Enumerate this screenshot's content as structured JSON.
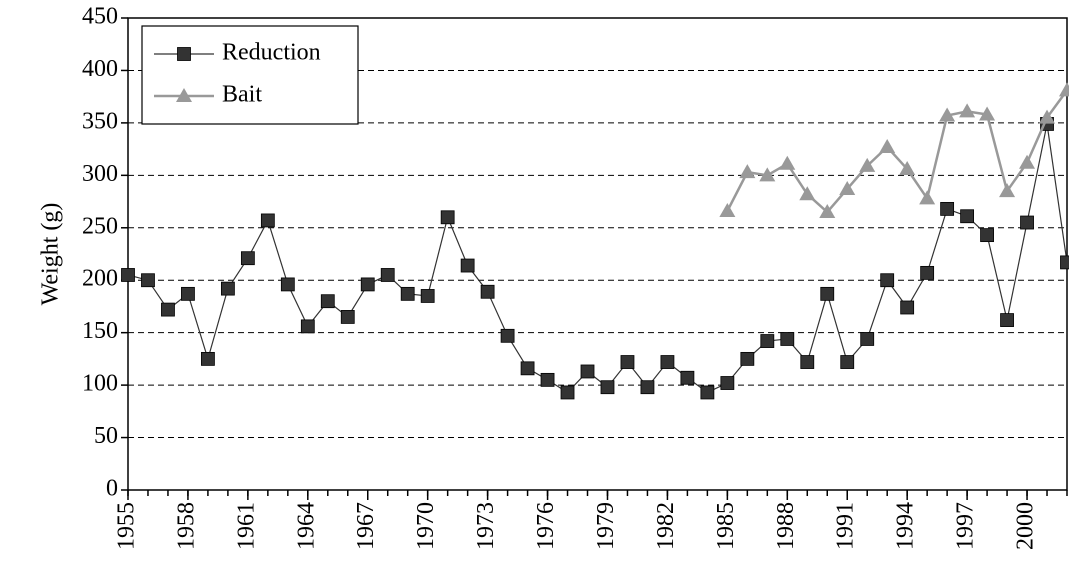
{
  "chart_data": {
    "type": "line",
    "y_label": "Weight (g)",
    "x": [
      1955,
      1956,
      1957,
      1958,
      1959,
      1960,
      1961,
      1962,
      1963,
      1964,
      1965,
      1966,
      1967,
      1968,
      1969,
      1970,
      1971,
      1972,
      1973,
      1974,
      1975,
      1976,
      1977,
      1978,
      1979,
      1980,
      1981,
      1982,
      1983,
      1984,
      1985,
      1986,
      1987,
      1988,
      1989,
      1990,
      1991,
      1992,
      1993,
      1994,
      1995,
      1996,
      1997,
      1998,
      1999,
      2000,
      2001,
      2002
    ],
    "series": [
      {
        "name": "Reduction",
        "color": "#333333",
        "marker": "square",
        "values": [
          205,
          200,
          172,
          187,
          125,
          192,
          221,
          257,
          196,
          156,
          180,
          165,
          196,
          205,
          187,
          185,
          260,
          214,
          189,
          147,
          116,
          105,
          93,
          113,
          98,
          122,
          98,
          122,
          107,
          93,
          102,
          125,
          142,
          144,
          122,
          187,
          122,
          144,
          200,
          174,
          207,
          268,
          261,
          243,
          162,
          255,
          349,
          217
        ]
      },
      {
        "name": "Bait",
        "color": "#999999",
        "marker": "triangle",
        "values": [
          null,
          null,
          null,
          null,
          null,
          null,
          null,
          null,
          null,
          null,
          null,
          null,
          null,
          null,
          null,
          null,
          null,
          null,
          null,
          null,
          null,
          null,
          null,
          null,
          null,
          null,
          null,
          null,
          null,
          null,
          266,
          303,
          300,
          311,
          282,
          265,
          287,
          309,
          327,
          306,
          278,
          357,
          361,
          358,
          285,
          312,
          355,
          381
        ]
      }
    ],
    "xlim": [
      1955,
      2002
    ],
    "xticks": [
      1955,
      1958,
      1961,
      1964,
      1967,
      1970,
      1973,
      1976,
      1979,
      1982,
      1985,
      1988,
      1991,
      1994,
      1997,
      2000
    ],
    "ylim": [
      0,
      450
    ],
    "yticks": [
      0,
      50,
      100,
      150,
      200,
      250,
      300,
      350,
      400,
      450
    ],
    "grid": true,
    "legend": "top-left"
  }
}
